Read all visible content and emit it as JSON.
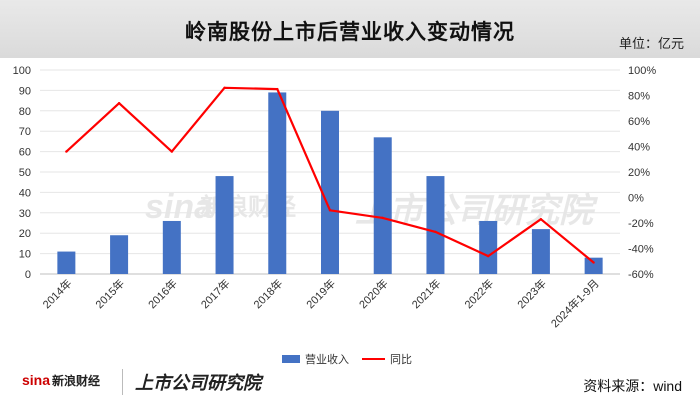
{
  "title": "岭南股份上市后营业收入变动情况",
  "unit_label": "单位：亿元",
  "source_label": "资料来源：wind",
  "footer": {
    "sina_logo": "sina",
    "sina_cn": "新浪财经",
    "brand": "上市公司研究院"
  },
  "watermark": {
    "sina": "sina",
    "sina_cn": "新浪财经",
    "brand": "上市公司研究院"
  },
  "colors": {
    "bar": "#4472c4",
    "line": "#ff0000",
    "title_bg": "#e0e0e0"
  },
  "chart_data": {
    "type": "bar",
    "categories": [
      "2014年",
      "2015年",
      "2016年",
      "2017年",
      "2018年",
      "2019年",
      "2020年",
      "2021年",
      "2022年",
      "2023年",
      "2024年1-9月"
    ],
    "series": [
      {
        "name": "营业收入",
        "type": "bar",
        "axis": "left",
        "values": [
          11,
          19,
          26,
          48,
          89,
          80,
          67,
          48,
          26,
          22,
          8
        ]
      },
      {
        "name": "同比",
        "type": "line",
        "axis": "right",
        "unit": "%",
        "values": [
          36,
          74,
          36,
          86,
          85,
          -10,
          -16,
          -27,
          -46,
          -17,
          -51
        ]
      }
    ],
    "y_left": {
      "min": 0,
      "max": 100,
      "ticks": [
        0,
        10,
        20,
        30,
        40,
        50,
        60,
        70,
        80,
        90,
        100
      ]
    },
    "y_right": {
      "min": -60,
      "max": 100,
      "ticks": [
        "-60%",
        "-40%",
        "-20%",
        "0%",
        "20%",
        "40%",
        "60%",
        "80%",
        "100%"
      ]
    },
    "legend_position": "bottom"
  }
}
